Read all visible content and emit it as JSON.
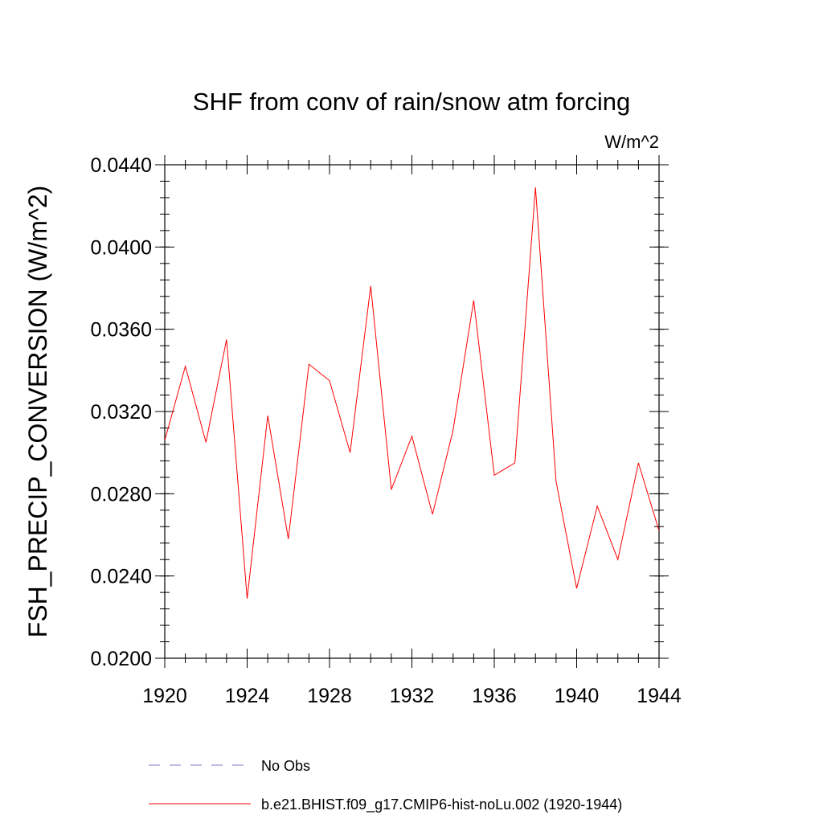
{
  "chart_data": {
    "type": "line",
    "title": "SHF from conv of rain/snow atm forcing",
    "units": "W/m^2",
    "ylabel": "FSH_PRECIP_CONVERSION  (W/m^2)",
    "xlabel": "",
    "xlim": [
      1920,
      1944
    ],
    "ylim": [
      0.02,
      0.044
    ],
    "x_ticks": [
      1920,
      1924,
      1928,
      1932,
      1936,
      1940,
      1944
    ],
    "x_tick_labels": [
      "1920",
      "1924",
      "1928",
      "1932",
      "1936",
      "1940",
      "1944"
    ],
    "y_ticks": [
      0.02,
      0.024,
      0.028,
      0.032,
      0.036,
      0.04,
      0.044
    ],
    "y_tick_labels": [
      "0.0200",
      "0.0240",
      "0.0280",
      "0.0320",
      "0.0360",
      "0.0400",
      "0.0440"
    ],
    "grid": false,
    "legend_position": "bottom",
    "series": [
      {
        "name": "No Obs",
        "color": "#7b7bc6",
        "dash": true,
        "x": [],
        "values": []
      },
      {
        "name": "b.e21.BHIST.f09_g17.CMIP6-hist-noLu.002 (1920-1944)",
        "color": "#ff0000",
        "dash": false,
        "x": [
          1920,
          1921,
          1922,
          1923,
          1924,
          1925,
          1926,
          1927,
          1928,
          1929,
          1930,
          1931,
          1932,
          1933,
          1934,
          1935,
          1936,
          1937,
          1938,
          1939,
          1940,
          1941,
          1942,
          1943,
          1944
        ],
        "values": [
          0.0306,
          0.0342,
          0.0305,
          0.0355,
          0.0229,
          0.0318,
          0.0258,
          0.0343,
          0.0335,
          0.03,
          0.0381,
          0.0282,
          0.0308,
          0.027,
          0.0311,
          0.0374,
          0.0289,
          0.0295,
          0.0429,
          0.0286,
          0.0234,
          0.0274,
          0.0248,
          0.0295,
          0.0262
        ]
      }
    ]
  }
}
